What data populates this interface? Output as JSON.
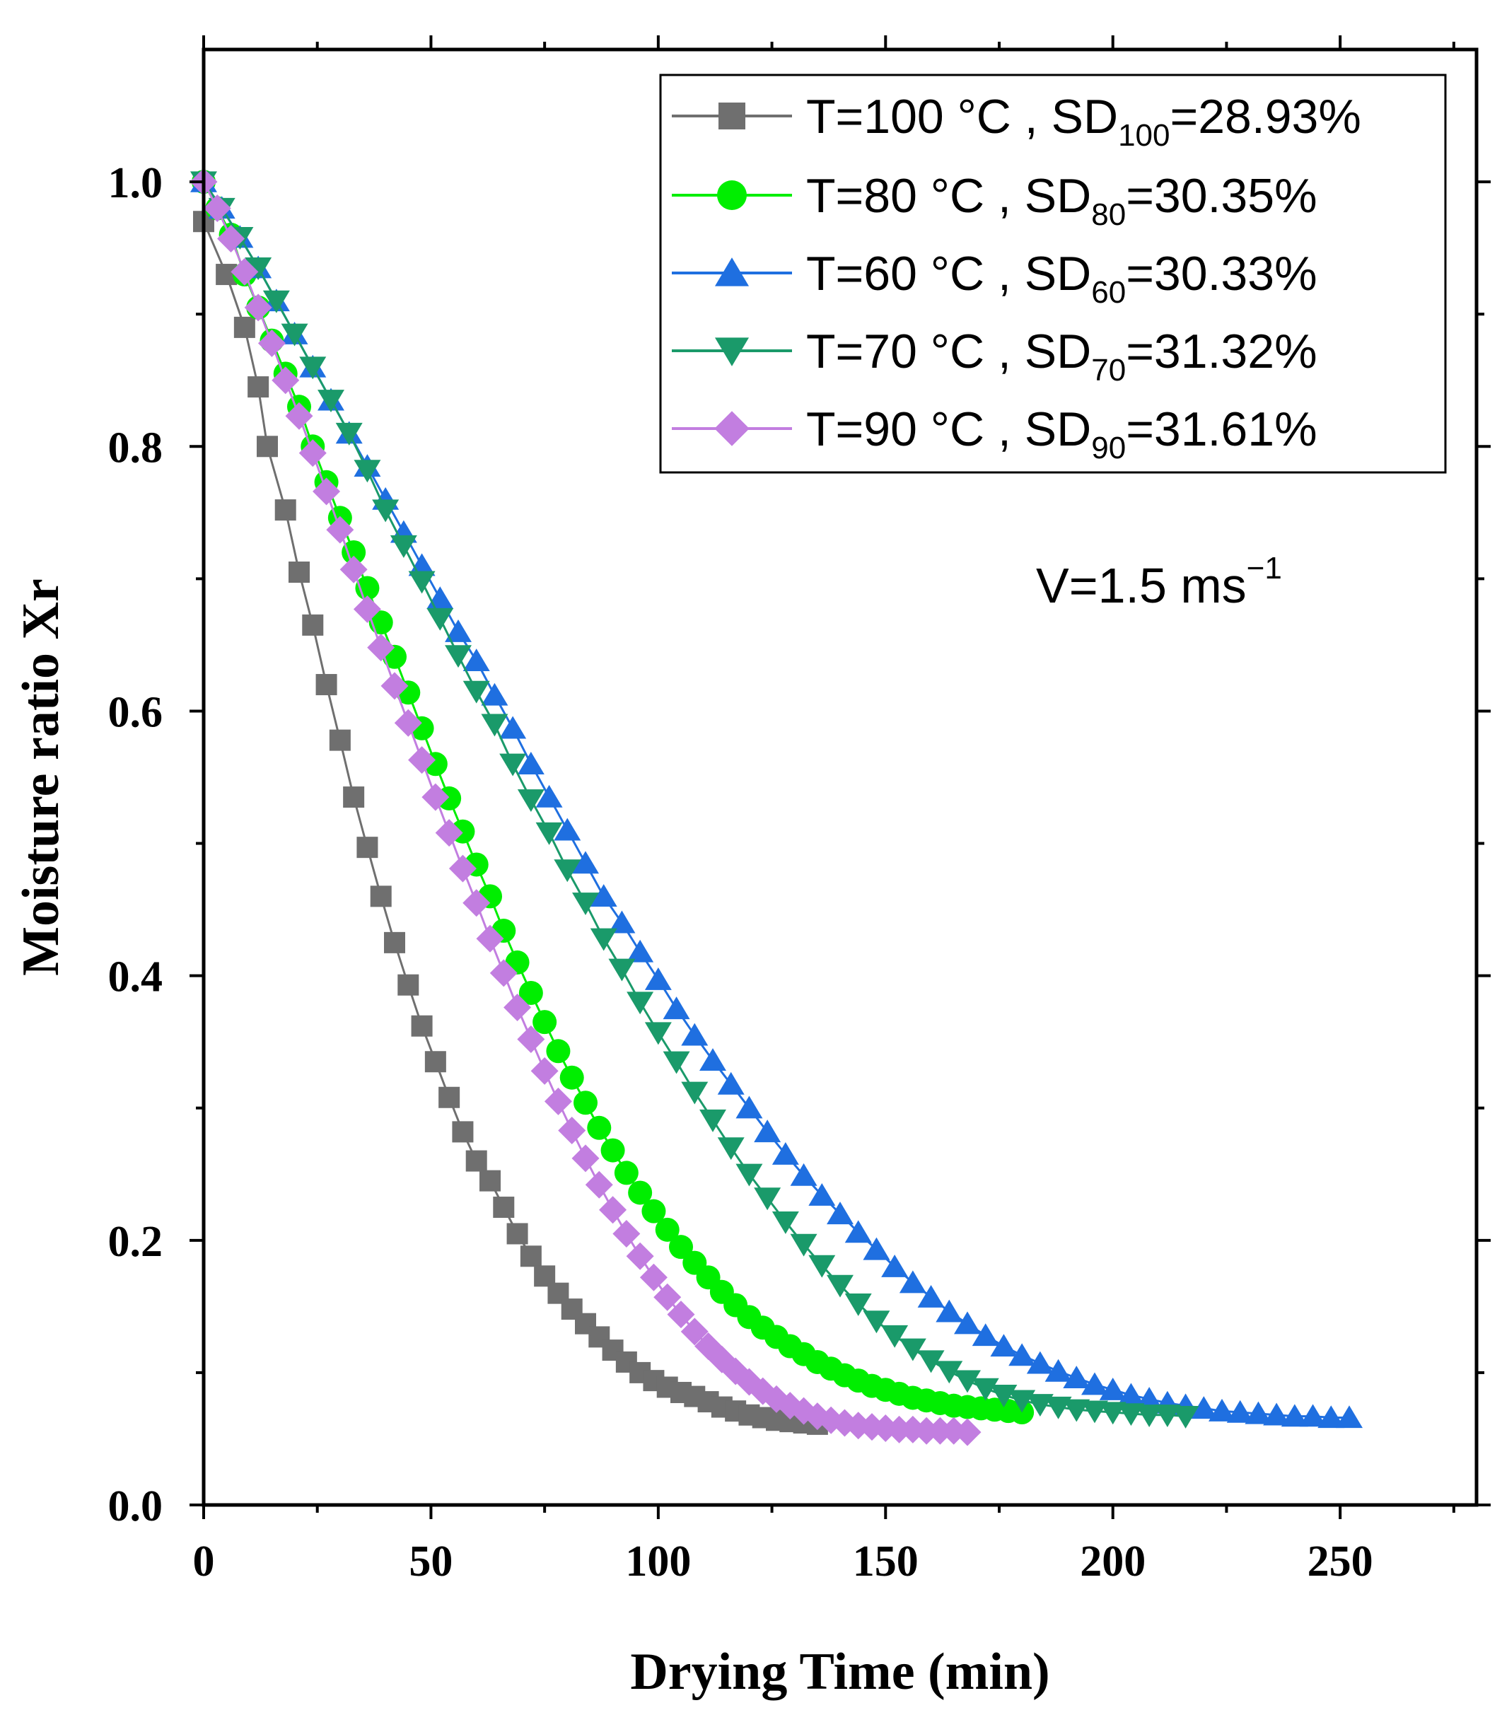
{
  "chart_data": {
    "type": "scatter",
    "xlabel": "Drying Time (min)",
    "ylabel": "Moisture ratio Xr",
    "xlim": [
      0,
      280
    ],
    "ylim": [
      0,
      1.1
    ],
    "x_ticks": [
      "0",
      "50",
      "100",
      "150",
      "200",
      "250"
    ],
    "y_ticks": [
      "0.0",
      "0.2",
      "0.4",
      "0.6",
      "0.8",
      "1.0"
    ],
    "grid": false,
    "legend_position": "top-right",
    "annotation": {
      "main": "V=1.5 ms",
      "sup": "−1"
    },
    "series": [
      {
        "name": "T=100 °C",
        "sd_label": "SD",
        "sd_sub": "100",
        "sd_value": "=28.93%",
        "color": "#6f6f6f",
        "marker": "square",
        "x": [
          0,
          5,
          9,
          12,
          14,
          18,
          21,
          24,
          27,
          30,
          33,
          36,
          39,
          42,
          45,
          48,
          51,
          54,
          57,
          60,
          63,
          66,
          69,
          72,
          75,
          78,
          81,
          84,
          87,
          90,
          93,
          96,
          99,
          102,
          105,
          108,
          111,
          114,
          117,
          120,
          123,
          126,
          129,
          132,
          135
        ],
        "y": [
          0.97,
          0.93,
          0.89,
          0.845,
          0.8,
          0.752,
          0.705,
          0.665,
          0.62,
          0.578,
          0.535,
          0.497,
          0.46,
          0.425,
          0.393,
          0.362,
          0.335,
          0.308,
          0.282,
          0.26,
          0.245,
          0.225,
          0.205,
          0.188,
          0.173,
          0.16,
          0.148,
          0.137,
          0.127,
          0.117,
          0.108,
          0.1,
          0.094,
          0.089,
          0.085,
          0.082,
          0.078,
          0.074,
          0.071,
          0.068,
          0.066,
          0.064,
          0.063,
          0.062,
          0.061
        ]
      },
      {
        "name": "T=80 °C",
        "sd_label": "SD",
        "sd_sub": "80",
        "sd_value": "=30.35%",
        "color": "#00ee00",
        "marker": "circle",
        "x": [
          0,
          3,
          6,
          9,
          12,
          15,
          18,
          21,
          24,
          27,
          30,
          33,
          36,
          39,
          42,
          45,
          48,
          51,
          54,
          57,
          60,
          63,
          66,
          69,
          72,
          75,
          78,
          81,
          84,
          87,
          90,
          93,
          96,
          99,
          102,
          105,
          108,
          111,
          114,
          117,
          120,
          123,
          126,
          129,
          132,
          135,
          138,
          141,
          144,
          147,
          150,
          153,
          156,
          159,
          162,
          165,
          168,
          171,
          174,
          177,
          180
        ],
        "y": [
          1.0,
          0.98,
          0.96,
          0.93,
          0.905,
          0.88,
          0.855,
          0.83,
          0.8,
          0.773,
          0.746,
          0.72,
          0.693,
          0.667,
          0.641,
          0.614,
          0.587,
          0.56,
          0.534,
          0.509,
          0.484,
          0.46,
          0.434,
          0.41,
          0.387,
          0.365,
          0.343,
          0.323,
          0.304,
          0.285,
          0.268,
          0.251,
          0.236,
          0.222,
          0.208,
          0.195,
          0.183,
          0.172,
          0.161,
          0.151,
          0.142,
          0.134,
          0.127,
          0.12,
          0.114,
          0.108,
          0.103,
          0.098,
          0.094,
          0.09,
          0.087,
          0.084,
          0.081,
          0.079,
          0.077,
          0.075,
          0.074,
          0.073,
          0.072,
          0.071,
          0.07
        ]
      },
      {
        "name": "T=60 °C",
        "sd_label": "SD",
        "sd_sub": "60",
        "sd_value": "=30.33%",
        "color": "#1f6fe0",
        "marker": "triangle-up",
        "x": [
          0,
          4,
          8,
          12,
          16,
          20,
          24,
          28,
          32,
          36,
          40,
          44,
          48,
          52,
          56,
          60,
          64,
          68,
          72,
          76,
          80,
          84,
          88,
          92,
          96,
          100,
          104,
          108,
          112,
          116,
          120,
          124,
          128,
          132,
          136,
          140,
          144,
          148,
          152,
          156,
          160,
          164,
          168,
          172,
          176,
          180,
          184,
          188,
          192,
          196,
          200,
          204,
          208,
          212,
          216,
          220,
          224,
          228,
          232,
          236,
          240,
          244,
          248,
          252
        ],
        "y": [
          1.0,
          0.98,
          0.958,
          0.935,
          0.91,
          0.885,
          0.86,
          0.835,
          0.81,
          0.785,
          0.76,
          0.735,
          0.71,
          0.685,
          0.66,
          0.638,
          0.612,
          0.587,
          0.56,
          0.535,
          0.51,
          0.485,
          0.46,
          0.44,
          0.418,
          0.397,
          0.375,
          0.355,
          0.336,
          0.318,
          0.3,
          0.282,
          0.265,
          0.249,
          0.234,
          0.22,
          0.206,
          0.193,
          0.18,
          0.168,
          0.157,
          0.146,
          0.137,
          0.128,
          0.12,
          0.113,
          0.107,
          0.101,
          0.096,
          0.091,
          0.087,
          0.083,
          0.08,
          0.077,
          0.075,
          0.073,
          0.071,
          0.07,
          0.069,
          0.068,
          0.067,
          0.067,
          0.066,
          0.066
        ]
      },
      {
        "name": "T=70 °C",
        "sd_label": "SD",
        "sd_sub": "70",
        "sd_value": "=31.32%",
        "color": "#1a9a6a",
        "marker": "triangle-down",
        "x": [
          0,
          4,
          8,
          12,
          16,
          20,
          24,
          28,
          32,
          36,
          40,
          44,
          48,
          52,
          56,
          60,
          64,
          68,
          72,
          76,
          80,
          84,
          88,
          92,
          96,
          100,
          104,
          108,
          112,
          116,
          120,
          124,
          128,
          132,
          136,
          140,
          144,
          148,
          152,
          156,
          160,
          164,
          168,
          172,
          176,
          180,
          184,
          188,
          192,
          196,
          200,
          204,
          208,
          212,
          216
        ],
        "y": [
          1.0,
          0.98,
          0.958,
          0.935,
          0.91,
          0.885,
          0.86,
          0.835,
          0.81,
          0.782,
          0.752,
          0.725,
          0.698,
          0.67,
          0.642,
          0.615,
          0.59,
          0.56,
          0.533,
          0.508,
          0.48,
          0.455,
          0.428,
          0.405,
          0.38,
          0.357,
          0.335,
          0.312,
          0.291,
          0.27,
          0.25,
          0.232,
          0.214,
          0.197,
          0.181,
          0.166,
          0.152,
          0.139,
          0.128,
          0.118,
          0.109,
          0.101,
          0.094,
          0.088,
          0.083,
          0.079,
          0.076,
          0.074,
          0.072,
          0.071,
          0.07,
          0.069,
          0.068,
          0.068,
          0.067
        ]
      },
      {
        "name": "T=90 °C",
        "sd_label": "SD",
        "sd_sub": "90",
        "sd_value": "=31.61%",
        "color": "#c27ee0",
        "marker": "diamond",
        "x": [
          0,
          3,
          6,
          9,
          12,
          15,
          18,
          21,
          24,
          27,
          30,
          33,
          36,
          39,
          42,
          45,
          48,
          51,
          54,
          57,
          60,
          63,
          66,
          69,
          72,
          75,
          78,
          81,
          84,
          87,
          90,
          93,
          96,
          99,
          102,
          105,
          108,
          111,
          114,
          117,
          120,
          123,
          126,
          129,
          132,
          135,
          138,
          141,
          144,
          147,
          150,
          153,
          156,
          159,
          162,
          165,
          168
        ],
        "y": [
          1.0,
          0.98,
          0.957,
          0.932,
          0.905,
          0.878,
          0.85,
          0.823,
          0.795,
          0.766,
          0.737,
          0.707,
          0.677,
          0.648,
          0.619,
          0.591,
          0.563,
          0.535,
          0.508,
          0.481,
          0.455,
          0.428,
          0.402,
          0.376,
          0.352,
          0.328,
          0.305,
          0.283,
          0.262,
          0.242,
          0.223,
          0.205,
          0.188,
          0.172,
          0.157,
          0.144,
          0.131,
          0.12,
          0.11,
          0.101,
          0.093,
          0.086,
          0.08,
          0.075,
          0.071,
          0.067,
          0.064,
          0.062,
          0.06,
          0.059,
          0.058,
          0.057,
          0.057,
          0.056,
          0.056,
          0.056,
          0.055
        ]
      }
    ]
  }
}
